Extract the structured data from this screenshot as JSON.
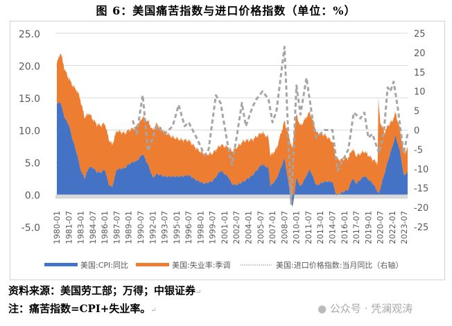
{
  "title": "图 6：美国痛苦指数与进口价格指数（单位：%）",
  "footer": {
    "source": "资料来源：美国劳工部；万得；中银证券",
    "note": "注：痛苦指数=CPI+失业率。",
    "watermark": "公众号 · 凭澜观涛"
  },
  "chart_data": {
    "type": "area",
    "stacked": true,
    "title": "",
    "left_axis": {
      "ylim": [
        -5,
        25
      ],
      "ticks": [
        "25.0",
        "20.0",
        "15.0",
        "10.0",
        "5.0",
        "0.0",
        "-5.0"
      ]
    },
    "right_axis": {
      "ylim": [
        -25,
        25
      ],
      "ticks": [
        "25",
        "20",
        "15",
        "10",
        "5",
        "0",
        "-5",
        "-10",
        "-15",
        "-20",
        "-25"
      ]
    },
    "x_ticks": [
      "1980-01",
      "1981-07",
      "1983-01",
      "1984-07",
      "1986-01",
      "1987-07",
      "1989-01",
      "1990-07",
      "1992-01",
      "1993-07",
      "1995-01",
      "1996-07",
      "1998-01",
      "1999-07",
      "2001-01",
      "2002-07",
      "2004-01",
      "2005-07",
      "2007-01",
      "2008-07",
      "2010-01",
      "2011-07",
      "2013-01",
      "2014-07",
      "2016-01",
      "2017-07",
      "2019-01",
      "2020-07",
      "2022-01",
      "2023-07"
    ],
    "x_range": [
      "1980-01",
      "2023-12"
    ],
    "grid": true,
    "legend_position": "bottom",
    "colors": {
      "cpi": "#4472C4",
      "unemployment": "#ED7D31",
      "import": "#A5A5A5",
      "grid": "#d9d9d9"
    },
    "series": [
      {
        "name": "美国:CPI:同比",
        "axis": "left",
        "type": "area",
        "points": [
          [
            "1980-01",
            14.0
          ],
          [
            "1980-06",
            14.4
          ],
          [
            "1981-01",
            11.8
          ],
          [
            "1981-07",
            10.8
          ],
          [
            "1982-01",
            8.4
          ],
          [
            "1982-07",
            6.4
          ],
          [
            "1983-01",
            3.7
          ],
          [
            "1983-07",
            2.5
          ],
          [
            "1984-01",
            4.2
          ],
          [
            "1984-07",
            4.2
          ],
          [
            "1985-01",
            3.5
          ],
          [
            "1985-07",
            3.4
          ],
          [
            "1986-01",
            3.9
          ],
          [
            "1986-07",
            1.6
          ],
          [
            "1986-12",
            1.1
          ],
          [
            "1987-07",
            3.9
          ],
          [
            "1988-01",
            4.0
          ],
          [
            "1988-07",
            4.1
          ],
          [
            "1989-01",
            4.7
          ],
          [
            "1989-07",
            5.0
          ],
          [
            "1990-01",
            5.2
          ],
          [
            "1990-10",
            6.3
          ],
          [
            "1991-07",
            4.4
          ],
          [
            "1992-01",
            2.6
          ],
          [
            "1992-07",
            3.2
          ],
          [
            "1993-07",
            2.8
          ],
          [
            "1994-07",
            2.8
          ],
          [
            "1995-07",
            2.8
          ],
          [
            "1996-07",
            3.0
          ],
          [
            "1997-07",
            2.2
          ],
          [
            "1998-07",
            1.7
          ],
          [
            "1999-07",
            2.1
          ],
          [
            "2000-07",
            3.7
          ],
          [
            "2001-07",
            2.7
          ],
          [
            "2001-12",
            1.6
          ],
          [
            "2002-07",
            1.5
          ],
          [
            "2003-07",
            2.1
          ],
          [
            "2004-07",
            3.0
          ],
          [
            "2005-09",
            4.7
          ],
          [
            "2006-07",
            4.1
          ],
          [
            "2006-10",
            1.3
          ],
          [
            "2007-07",
            2.4
          ],
          [
            "2008-07",
            5.6
          ],
          [
            "2009-07",
            -2.1
          ],
          [
            "2010-01",
            2.6
          ],
          [
            "2010-07",
            1.2
          ],
          [
            "2011-09",
            3.9
          ],
          [
            "2012-07",
            1.4
          ],
          [
            "2013-07",
            2.0
          ],
          [
            "2014-07",
            2.0
          ],
          [
            "2015-01",
            -0.1
          ],
          [
            "2015-07",
            0.2
          ],
          [
            "2016-07",
            0.8
          ],
          [
            "2017-01",
            2.5
          ],
          [
            "2017-07",
            1.7
          ],
          [
            "2018-07",
            2.9
          ],
          [
            "2019-07",
            1.8
          ],
          [
            "2020-05",
            0.1
          ],
          [
            "2020-07",
            1.0
          ],
          [
            "2021-07",
            5.4
          ],
          [
            "2022-06",
            9.1
          ],
          [
            "2023-01",
            6.4
          ],
          [
            "2023-06",
            3.0
          ],
          [
            "2023-12",
            3.4
          ]
        ]
      },
      {
        "name": "美国:失业率:季调",
        "axis": "left",
        "type": "area",
        "points": [
          [
            "1980-01",
            6.3
          ],
          [
            "1980-07",
            7.8
          ],
          [
            "1981-07",
            7.2
          ],
          [
            "1982-12",
            10.8
          ],
          [
            "1983-07",
            9.4
          ],
          [
            "1984-07",
            7.5
          ],
          [
            "1985-07",
            7.3
          ],
          [
            "1986-07",
            7.0
          ],
          [
            "1987-07",
            6.0
          ],
          [
            "1988-07",
            5.4
          ],
          [
            "1989-07",
            5.2
          ],
          [
            "1990-07",
            5.5
          ],
          [
            "1991-07",
            6.8
          ],
          [
            "1992-06",
            7.8
          ],
          [
            "1993-07",
            6.9
          ],
          [
            "1994-07",
            6.1
          ],
          [
            "1995-07",
            5.7
          ],
          [
            "1996-07",
            5.4
          ],
          [
            "1997-07",
            4.9
          ],
          [
            "1998-07",
            4.5
          ],
          [
            "1999-07",
            4.3
          ],
          [
            "2000-07",
            4.0
          ],
          [
            "2001-07",
            4.6
          ],
          [
            "2002-07",
            5.8
          ],
          [
            "2003-06",
            6.3
          ],
          [
            "2004-07",
            5.5
          ],
          [
            "2005-07",
            5.0
          ],
          [
            "2006-07",
            4.7
          ],
          [
            "2007-07",
            4.7
          ],
          [
            "2008-07",
            5.8
          ],
          [
            "2009-10",
            10.0
          ],
          [
            "2010-07",
            9.4
          ],
          [
            "2011-07",
            9.0
          ],
          [
            "2012-07",
            8.2
          ],
          [
            "2013-07",
            7.3
          ],
          [
            "2014-07",
            6.2
          ],
          [
            "2015-07",
            5.2
          ],
          [
            "2016-07",
            4.9
          ],
          [
            "2017-07",
            4.3
          ],
          [
            "2018-07",
            3.8
          ],
          [
            "2019-07",
            3.7
          ],
          [
            "2020-03",
            4.4
          ],
          [
            "2020-04",
            14.7
          ],
          [
            "2020-07",
            10.2
          ],
          [
            "2021-01",
            6.4
          ],
          [
            "2021-07",
            5.4
          ],
          [
            "2022-01",
            4.0
          ],
          [
            "2022-07",
            3.5
          ],
          [
            "2023-07",
            3.5
          ],
          [
            "2023-12",
            3.7
          ]
        ]
      },
      {
        "name": "美国:进口价格指数:当月同比（右轴）",
        "axis": "right",
        "type": "line",
        "dashed": true,
        "points": [
          [
            "1989-07",
            2.5
          ],
          [
            "1990-01",
            -1
          ],
          [
            "1990-10",
            9
          ],
          [
            "1991-06",
            -5.4
          ],
          [
            "1992-01",
            -2
          ],
          [
            "1992-07",
            1
          ],
          [
            "1993-07",
            -1
          ],
          [
            "1994-07",
            1
          ],
          [
            "1995-04",
            6.5
          ],
          [
            "1996-01",
            1
          ],
          [
            "1996-07",
            2
          ],
          [
            "1997-07",
            -2
          ],
          [
            "1998-07",
            -6.5
          ],
          [
            "1999-01",
            -5
          ],
          [
            "1999-12",
            9
          ],
          [
            "2000-07",
            7
          ],
          [
            "2001-07",
            -5
          ],
          [
            "2001-12",
            -9
          ],
          [
            "2002-07",
            -2
          ],
          [
            "2003-03",
            7
          ],
          [
            "2003-09",
            1
          ],
          [
            "2004-07",
            6
          ],
          [
            "2005-01",
            8
          ],
          [
            "2005-10",
            10
          ],
          [
            "2006-07",
            8
          ],
          [
            "2007-01",
            2
          ],
          [
            "2007-07",
            5
          ],
          [
            "2008-07",
            21.5
          ],
          [
            "2009-05",
            -19
          ],
          [
            "2010-01",
            11.5
          ],
          [
            "2010-07",
            4
          ],
          [
            "2011-04",
            13.5
          ],
          [
            "2012-01",
            3
          ],
          [
            "2012-07",
            -2
          ],
          [
            "2013-07",
            0
          ],
          [
            "2014-07",
            0
          ],
          [
            "2015-03",
            -10.5
          ],
          [
            "2016-01",
            -7
          ],
          [
            "2016-07",
            -5
          ],
          [
            "2017-03",
            4.5
          ],
          [
            "2018-01",
            3
          ],
          [
            "2018-07",
            4.5
          ],
          [
            "2019-01",
            -2
          ],
          [
            "2019-07",
            -1
          ],
          [
            "2020-05",
            -6
          ],
          [
            "2020-12",
            -1
          ],
          [
            "2021-06",
            11
          ],
          [
            "2021-10",
            10
          ],
          [
            "2022-03",
            12.5
          ],
          [
            "2022-09",
            6
          ],
          [
            "2023-06",
            -6
          ],
          [
            "2023-12",
            -1
          ]
        ]
      }
    ]
  }
}
